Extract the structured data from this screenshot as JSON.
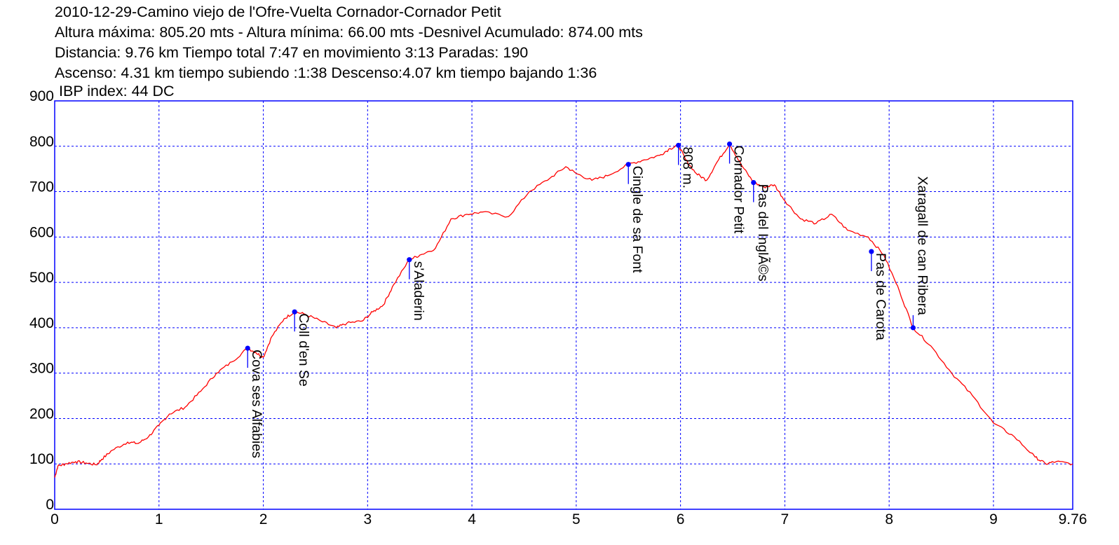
{
  "header": {
    "title": "2010-12-29-Camino viejo de l'Ofre-Vuelta Cornador-Cornador Petit",
    "line2": "Altura máxima: 805.20 mts - Altura mínima: 66.00 mts -Desnivel Acumulado: 874.00 mts",
    "line3": "Distancia: 9.76 km  Tiempo total 7:47  en movimiento 3:13 Paradas: 190",
    "line4": "Ascenso: 4.31 km  tiempo subiendo :1:38  Descenso:4.07 km tiempo bajando 1:36",
    "ibp": "IBP index: 44 DC"
  },
  "colors": {
    "frame": "#0000ff",
    "grid": "#0000ff",
    "profile": "#ff0000",
    "waypoint": "#0000ff",
    "text": "#000000"
  },
  "chart_data": {
    "type": "line",
    "xlim": [
      0,
      9.76
    ],
    "ylim": [
      0,
      900
    ],
    "x_ticks": [
      "0",
      "1",
      "2",
      "3",
      "4",
      "5",
      "6",
      "7",
      "8",
      "9",
      "9.76"
    ],
    "x_tick_values": [
      0,
      1,
      2,
      3,
      4,
      5,
      6,
      7,
      8,
      9,
      9.76
    ],
    "y_ticks": [
      "0",
      "100",
      "200",
      "300",
      "400",
      "500",
      "600",
      "700",
      "800",
      "900"
    ],
    "y_tick_values": [
      0,
      100,
      200,
      300,
      400,
      500,
      600,
      700,
      800,
      900
    ],
    "grid": true,
    "series": [
      {
        "x": [
          0,
          0.03,
          0.1,
          0.2,
          0.3,
          0.4,
          0.45,
          0.55,
          0.7,
          0.8,
          0.9,
          1.0,
          1.1,
          1.25,
          1.4,
          1.55,
          1.7,
          1.85,
          1.93,
          2.0,
          2.08,
          2.2,
          2.3,
          2.4,
          2.55,
          2.7,
          2.8,
          2.95,
          3.05,
          3.15,
          3.25,
          3.4,
          3.5,
          3.65,
          3.8,
          3.95,
          4.1,
          4.35,
          4.55,
          4.75,
          4.9,
          5.0,
          5.15,
          5.3,
          5.5,
          5.65,
          5.8,
          5.9,
          5.98,
          6.05,
          6.15,
          6.25,
          6.35,
          6.47,
          6.58,
          6.7,
          6.8,
          6.9,
          7.0,
          7.15,
          7.3,
          7.45,
          7.6,
          7.8,
          7.95,
          8.1,
          8.23,
          8.4,
          8.6,
          8.8,
          9.0,
          9.2,
          9.4,
          9.5,
          9.6,
          9.76
        ],
        "y": [
          70,
          95,
          100,
          105,
          102,
          98,
          110,
          130,
          148,
          145,
          160,
          185,
          210,
          225,
          260,
          300,
          325,
          355,
          345,
          335,
          380,
          420,
          435,
          430,
          415,
          400,
          410,
          415,
          435,
          450,
          495,
          550,
          560,
          575,
          640,
          650,
          655,
          645,
          700,
          730,
          755,
          740,
          725,
          735,
          760,
          770,
          780,
          795,
          802,
          770,
          740,
          725,
          765,
          805,
          760,
          720,
          710,
          715,
          680,
          640,
          630,
          650,
          615,
          600,
          560,
          480,
          400,
          360,
          300,
          250,
          190,
          160,
          115,
          100,
          105,
          100
        ]
      }
    ],
    "waypoints": [
      {
        "name": "Cova ses Alfabies",
        "x": 1.85,
        "y": 355
      },
      {
        "name": "Coll d'en Se",
        "x": 2.3,
        "y": 435
      },
      {
        "name": "s'Aladerin",
        "x": 3.4,
        "y": 550
      },
      {
        "name": "Cingle de sa Font",
        "x": 5.5,
        "y": 760
      },
      {
        "name": "808 m.",
        "x": 5.98,
        "y": 802
      },
      {
        "name": "Cornador Petit",
        "x": 6.47,
        "y": 805
      },
      {
        "name": "Pas del InglÃ©s",
        "x": 6.7,
        "y": 720
      },
      {
        "name": "Pas de Carota",
        "x": 7.83,
        "y": 568
      },
      {
        "name": "Xaragall de can Ribera",
        "x": 8.23,
        "y": 400
      }
    ]
  }
}
